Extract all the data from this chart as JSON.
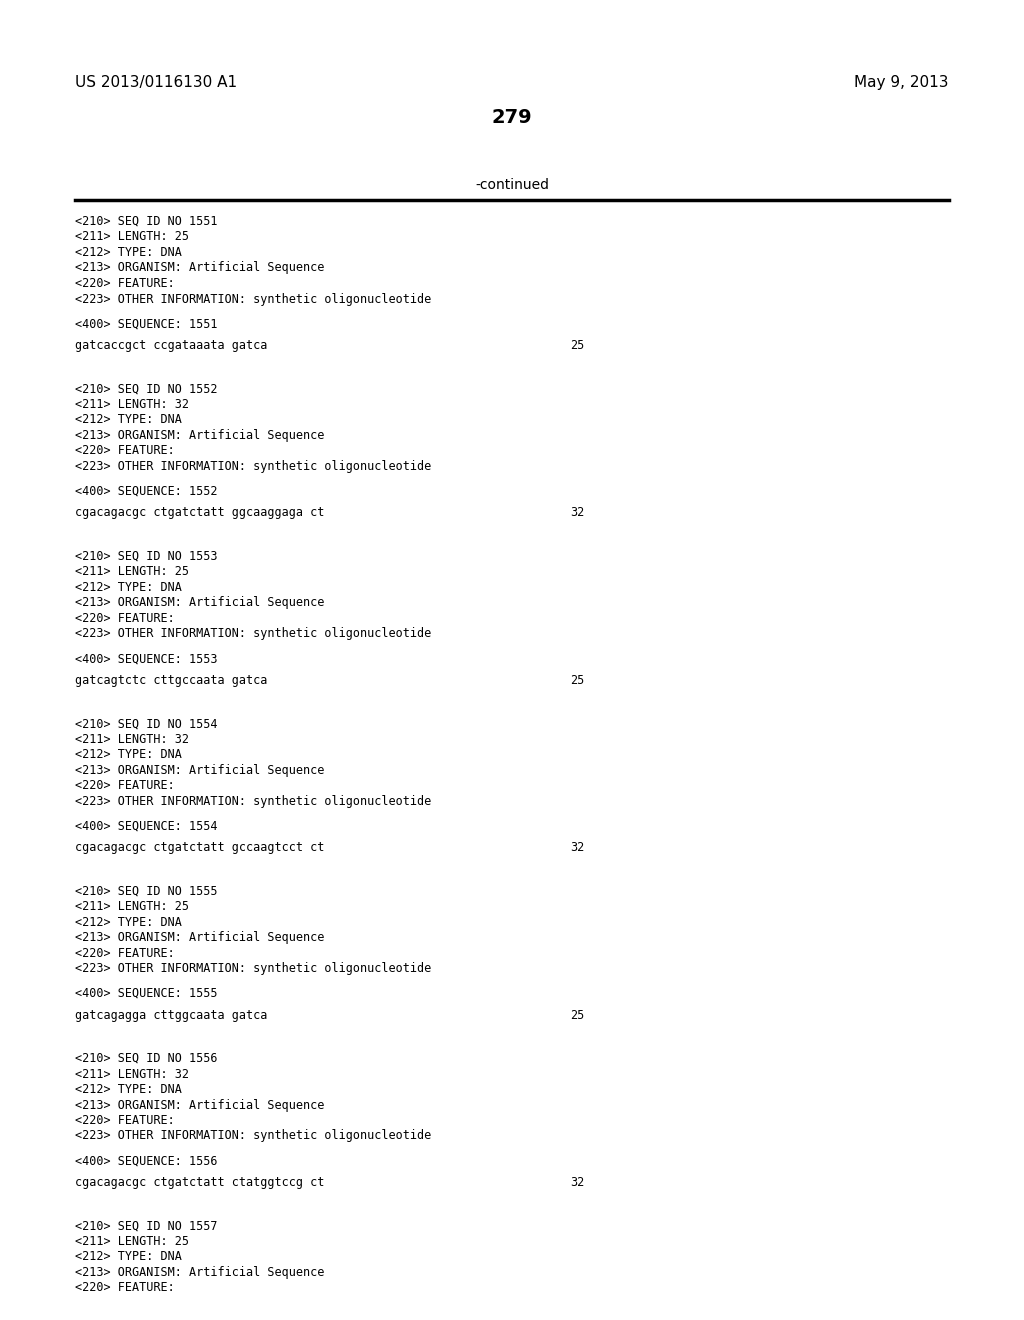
{
  "header_left": "US 2013/0116130 A1",
  "header_right": "May 9, 2013",
  "page_number": "279",
  "continued_text": "-continued",
  "bg_color": "#ffffff",
  "text_color": "#000000",
  "blocks": [
    {
      "meta_lines": [
        "<210> SEQ ID NO 1551",
        "<211> LENGTH: 25",
        "<212> TYPE: DNA",
        "<213> ORGANISM: Artificial Sequence",
        "<220> FEATURE:",
        "<223> OTHER INFORMATION: synthetic oligonucleotide"
      ],
      "seq_label": "<400> SEQUENCE: 1551",
      "sequence": "gatcaccgct ccgataaata gatca",
      "seq_num": "25"
    },
    {
      "meta_lines": [
        "<210> SEQ ID NO 1552",
        "<211> LENGTH: 32",
        "<212> TYPE: DNA",
        "<213> ORGANISM: Artificial Sequence",
        "<220> FEATURE:",
        "<223> OTHER INFORMATION: synthetic oligonucleotide"
      ],
      "seq_label": "<400> SEQUENCE: 1552",
      "sequence": "cgacagacgc ctgatctatt ggcaaggaga ct",
      "seq_num": "32"
    },
    {
      "meta_lines": [
        "<210> SEQ ID NO 1553",
        "<211> LENGTH: 25",
        "<212> TYPE: DNA",
        "<213> ORGANISM: Artificial Sequence",
        "<220> FEATURE:",
        "<223> OTHER INFORMATION: synthetic oligonucleotide"
      ],
      "seq_label": "<400> SEQUENCE: 1553",
      "sequence": "gatcagtctc cttgccaata gatca",
      "seq_num": "25"
    },
    {
      "meta_lines": [
        "<210> SEQ ID NO 1554",
        "<211> LENGTH: 32",
        "<212> TYPE: DNA",
        "<213> ORGANISM: Artificial Sequence",
        "<220> FEATURE:",
        "<223> OTHER INFORMATION: synthetic oligonucleotide"
      ],
      "seq_label": "<400> SEQUENCE: 1554",
      "sequence": "cgacagacgc ctgatctatt gccaagtcct ct",
      "seq_num": "32"
    },
    {
      "meta_lines": [
        "<210> SEQ ID NO 1555",
        "<211> LENGTH: 25",
        "<212> TYPE: DNA",
        "<213> ORGANISM: Artificial Sequence",
        "<220> FEATURE:",
        "<223> OTHER INFORMATION: synthetic oligonucleotide"
      ],
      "seq_label": "<400> SEQUENCE: 1555",
      "sequence": "gatcagagga cttggcaata gatca",
      "seq_num": "25"
    },
    {
      "meta_lines": [
        "<210> SEQ ID NO 1556",
        "<211> LENGTH: 32",
        "<212> TYPE: DNA",
        "<213> ORGANISM: Artificial Sequence",
        "<220> FEATURE:",
        "<223> OTHER INFORMATION: synthetic oligonucleotide"
      ],
      "seq_label": "<400> SEQUENCE: 1556",
      "sequence": "cgacagacgc ctgatctatt ctatggtccg ct",
      "seq_num": "32"
    },
    {
      "meta_lines": [
        "<210> SEQ ID NO 1557",
        "<211> LENGTH: 25",
        "<212> TYPE: DNA",
        "<213> ORGANISM: Artificial Sequence",
        "<220> FEATURE:"
      ],
      "seq_label": null,
      "sequence": null,
      "seq_num": null
    }
  ],
  "monospace_font": "DejaVu Sans Mono",
  "normal_font": "DejaVu Sans",
  "fig_width": 10.24,
  "fig_height": 13.2,
  "dpi": 100
}
